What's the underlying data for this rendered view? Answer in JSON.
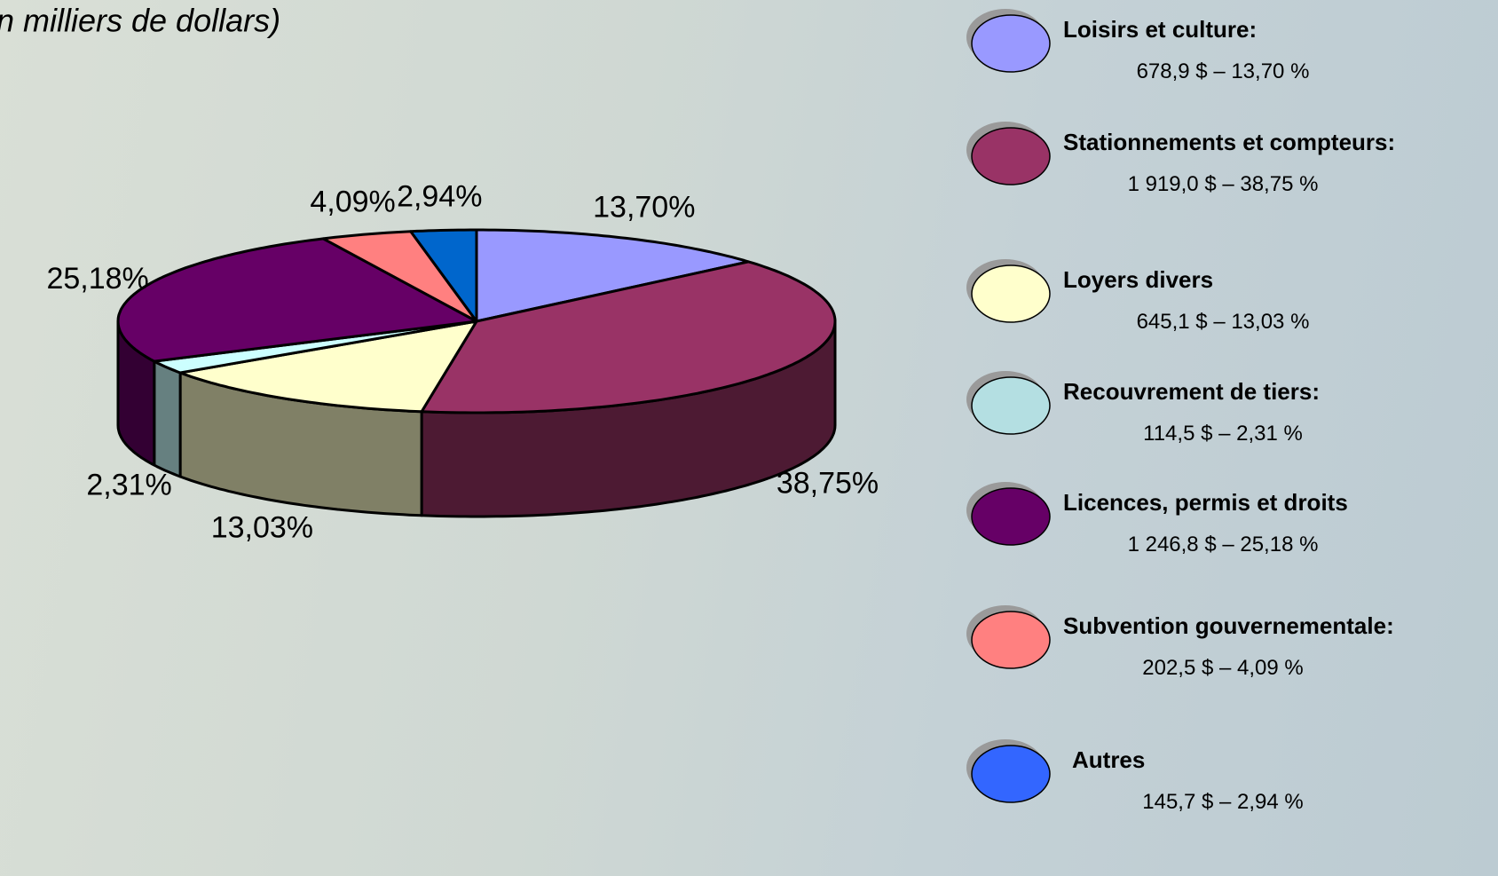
{
  "chart_data": {
    "type": "pie3d",
    "subtitle": "n milliers de dollars)",
    "categories": [
      "Loisirs et culture:",
      "Stationnements et compteurs:",
      "Loyers divers",
      "Recouvrement de tiers:",
      "Licences, permis et droits",
      "Subvention gouvernementale:",
      "Autres"
    ],
    "values": [
      13.7,
      38.75,
      13.03,
      2.31,
      25.18,
      4.09,
      2.94
    ],
    "value_labels": [
      "13,70%",
      "38,75%",
      "13,03%",
      "2,31%",
      "25,18%",
      "4,09%",
      "2,94%"
    ],
    "legend_details": [
      "678,9 $ – 13,70 %",
      "1 919,0 $ – 38,75 %",
      "645,1 $ – 13,03 %",
      "114,5 $ – 2,31 %",
      "1 246,8 $ – 25,18 %",
      "202,5 $ – 4,09 %",
      "145,7 $ – 2,94 %"
    ],
    "colors": [
      "#9999ff",
      "#993366",
      "#ffffcc",
      "#ccffff",
      "#660066",
      "#ff8080",
      "#0066cc"
    ],
    "legend_colors": [
      "#9999ff",
      "#993366",
      "#ffffcc",
      "#b4dfe2",
      "#660066",
      "#ff8080",
      "#3366ff"
    ]
  }
}
